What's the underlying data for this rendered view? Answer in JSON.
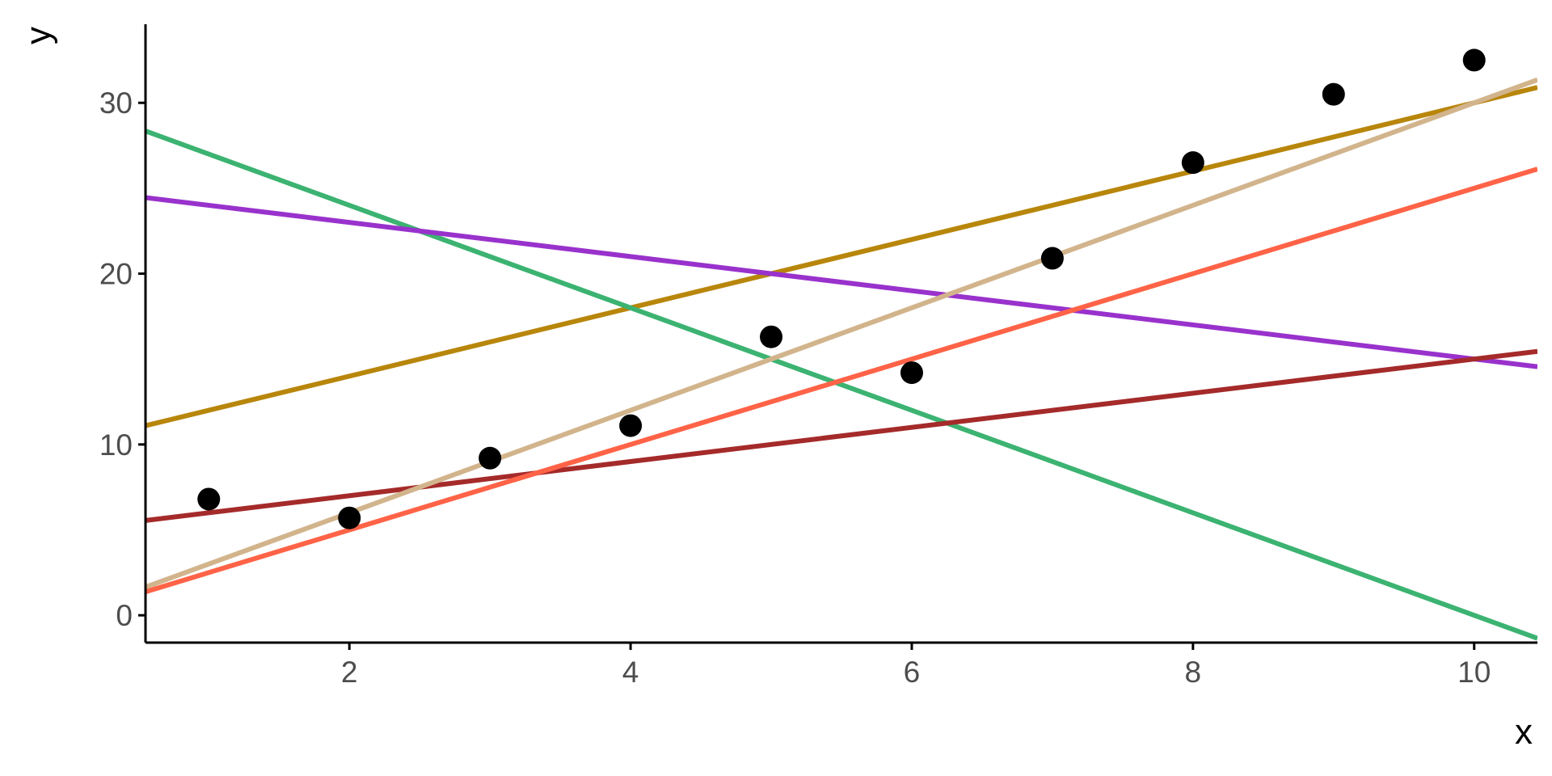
{
  "chart_data": {
    "type": "scatter",
    "xlabel": "x",
    "ylabel": "y",
    "xlim": [
      0.55,
      10.45
    ],
    "ylim": [
      -1.6,
      34.6
    ],
    "x_ticks": [
      2,
      4,
      6,
      8,
      10
    ],
    "y_ticks": [
      0,
      10,
      20,
      30
    ],
    "grid": false,
    "points": {
      "x": [
        1,
        2,
        3,
        4,
        5,
        6,
        7,
        8,
        9,
        10
      ],
      "y": [
        6.8,
        5.7,
        9.2,
        11.1,
        16.3,
        14.2,
        20.9,
        26.5,
        30.5,
        32.5
      ],
      "color": "#000000"
    },
    "lines": [
      {
        "intercept": 10,
        "slope": 2,
        "color": "#B8860B"
      },
      {
        "intercept": 30,
        "slope": -3,
        "color": "#3CB371"
      },
      {
        "intercept": 25,
        "slope": -1,
        "color": "#9932CC"
      },
      {
        "intercept": 5,
        "slope": 1,
        "color": "#A52A2A"
      },
      {
        "intercept": 0,
        "slope": 2.5,
        "color": "#FF6347"
      },
      {
        "intercept": 0,
        "slope": 3,
        "color": "#D2B48C"
      }
    ]
  }
}
